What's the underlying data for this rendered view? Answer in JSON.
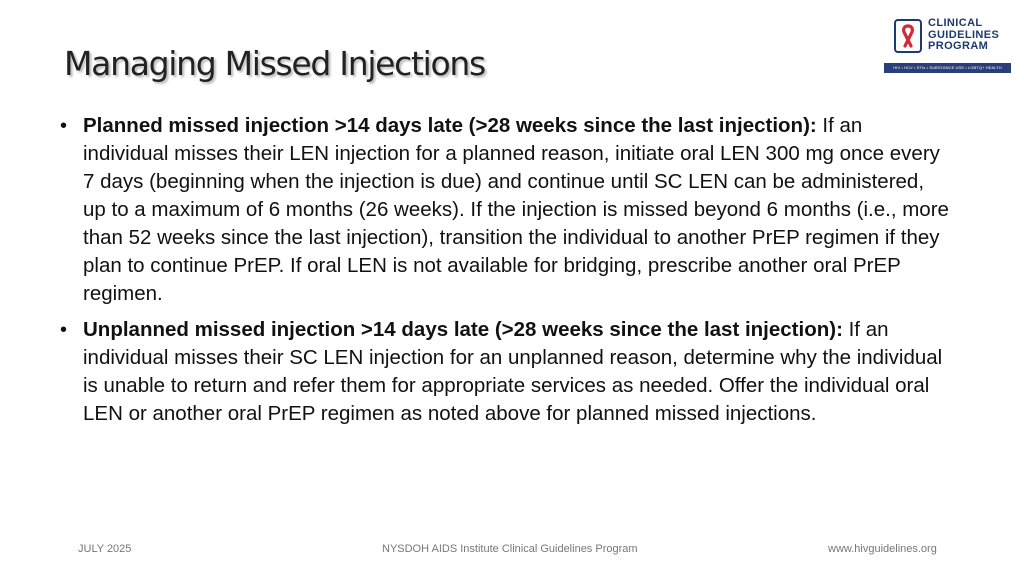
{
  "slide": {
    "title": "Managing Missed Injections",
    "logo": {
      "lines": [
        "CLINICAL",
        "GUIDELINES",
        "PROGRAM"
      ],
      "tagline": "HIV • HCV • STIs • SUBSTANCE USE • LGBTQ+ HEALTH",
      "icon": "red-ribbon-icon",
      "colors": {
        "ribbon": "#d42a35",
        "text": "#1d3a6e",
        "bar": "#2a3f7a"
      }
    },
    "bullets": [
      {
        "lead": "Planned missed injection >14 days late (>28 weeks since the last injection):",
        "text": " If an individual misses their LEN injection for a planned reason, initiate oral LEN 300 mg once every 7 days (beginning when the injection is due) and continue until SC LEN can be administered, up to a maximum of 6 months (26 weeks). If the injection is missed beyond 6 months (i.e., more than 52 weeks since the last injection), transition the individual to another PrEP regimen if they plan to continue PrEP. If oral LEN is not available for bridging, prescribe another oral PrEP regimen."
      },
      {
        "lead": "Unplanned missed injection >14 days late (>28 weeks since the last injection):",
        "text": " If an individual misses their SC LEN injection for an unplanned reason, determine why the individual is unable to return and refer them for appropriate services as needed. Offer the individual oral LEN or another oral PrEP regimen as noted above for planned missed injections."
      }
    ],
    "footer": {
      "date": "JULY 2025",
      "center": "NYSDOH AIDS Institute Clinical Guidelines Program",
      "url": "www.hivguidelines.org"
    }
  }
}
